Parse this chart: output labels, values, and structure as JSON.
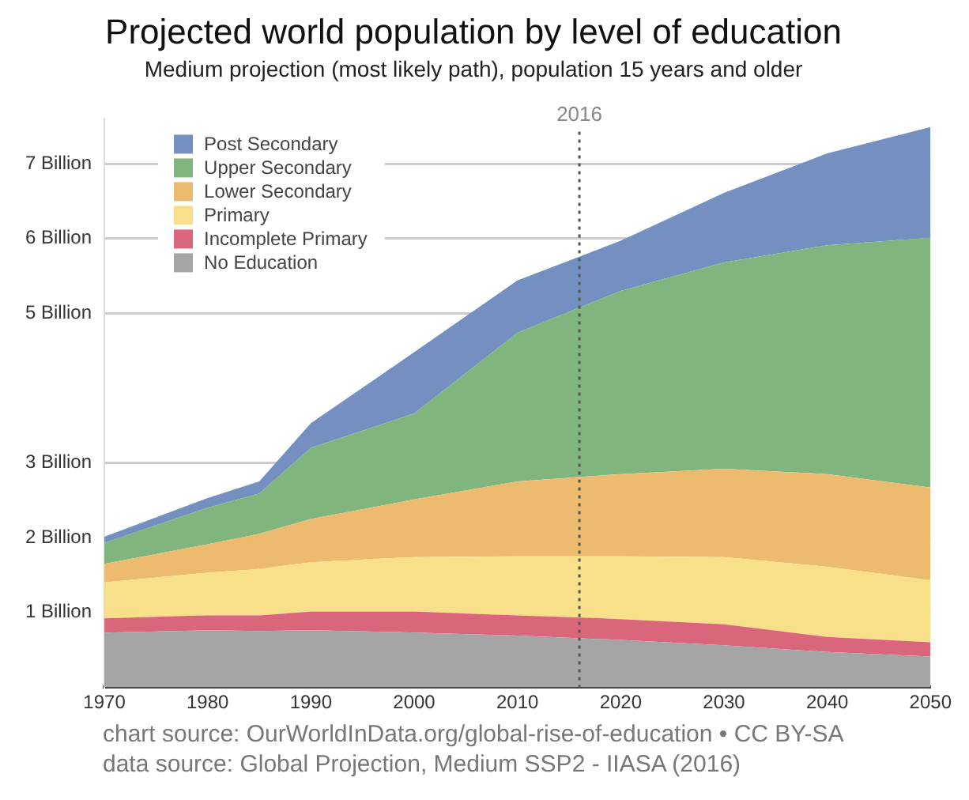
{
  "chart_data": {
    "type": "area",
    "title": "Projected world population by level of education",
    "subtitle": "Medium projection (most likely path), population 15 years and older",
    "x": [
      1970,
      1980,
      1985,
      1990,
      2000,
      2010,
      2020,
      2030,
      2040,
      2050
    ],
    "stacked": true,
    "series": [
      {
        "name": "No Education",
        "color": "#a5a5a5",
        "values": [
          0.73,
          0.76,
          0.75,
          0.76,
          0.73,
          0.69,
          0.63,
          0.56,
          0.47,
          0.41
        ]
      },
      {
        "name": "Incomplete Primary",
        "color": "#d9667a",
        "values": [
          0.19,
          0.2,
          0.21,
          0.25,
          0.28,
          0.27,
          0.28,
          0.28,
          0.2,
          0.19
        ]
      },
      {
        "name": "Primary",
        "color": "#f8df8a",
        "values": [
          0.48,
          0.57,
          0.62,
          0.66,
          0.73,
          0.79,
          0.84,
          0.9,
          0.94,
          0.83
        ]
      },
      {
        "name": "Lower Secondary",
        "color": "#edbb70",
        "values": [
          0.25,
          0.38,
          0.47,
          0.58,
          0.77,
          1.0,
          1.1,
          1.18,
          1.24,
          1.24
        ]
      },
      {
        "name": "Upper Secondary",
        "color": "#80b57d",
        "values": [
          0.28,
          0.49,
          0.54,
          0.95,
          1.15,
          1.99,
          2.45,
          2.76,
          3.06,
          3.34
        ]
      },
      {
        "name": "Post Secondary",
        "color": "#7490c0",
        "values": [
          0.08,
          0.13,
          0.16,
          0.33,
          0.82,
          0.7,
          0.67,
          0.93,
          1.23,
          1.48
        ]
      }
    ],
    "xlim": [
      1970,
      2050
    ],
    "xticks": [
      1970,
      1980,
      1990,
      2000,
      2010,
      2020,
      2030,
      2040,
      2050
    ],
    "ylim": [
      0,
      7.6
    ],
    "yticks": [
      {
        "value": 1,
        "label": "1 Billion"
      },
      {
        "value": 2,
        "label": "2 Billion"
      },
      {
        "value": 3,
        "label": "3 Billion"
      },
      {
        "value": 5,
        "label": "5 Billion"
      },
      {
        "value": 6,
        "label": "6 Billion"
      },
      {
        "value": 7,
        "label": "7 Billion"
      }
    ],
    "grid": "y",
    "legend": "top left",
    "marker": "none",
    "ref_lines": [
      {
        "axis": "x",
        "value": 2016,
        "label": "2016",
        "color": "#555555",
        "line_style": "dotted"
      }
    ],
    "annotations": [
      "chart source: OurWorldInData.org/global-rise-of-education • CC BY-SA",
      "data source: Global Projection, Medium SSP2 - IIASA (2016)"
    ]
  }
}
